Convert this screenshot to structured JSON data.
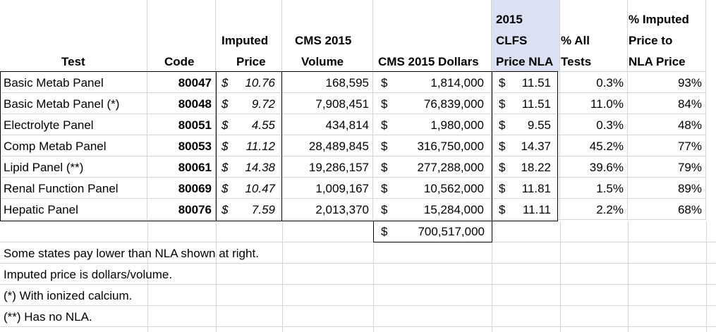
{
  "headers": {
    "test": "Test",
    "code": "Code",
    "imputed_price_l1": "Imputed",
    "imputed_price_l2": "Price",
    "cms_volume_l1": "CMS 2015",
    "cms_volume_l2": "Volume",
    "cms_dollars": "CMS 2015 Dollars",
    "clfs_l1": "2015",
    "clfs_l2": "CLFS",
    "clfs_l3": "Price NLA",
    "pct_all_l1": "% All",
    "pct_all_l2": "Tests",
    "pct_imputed_l1": "% Imputed",
    "pct_imputed_l2": "Price to",
    "pct_imputed_l3": "NLA Price"
  },
  "currency_symbol": "$",
  "rows": [
    {
      "test": "Basic Metab Panel",
      "code": "80047",
      "imputed_price": "10.76",
      "volume": "168,595",
      "dollars": "1,814,000",
      "nla_price": "11.51",
      "pct_all": "0.3%",
      "pct_imputed": "93%"
    },
    {
      "test": "Basic Metab Panel (*)",
      "code": "80048",
      "imputed_price": "9.72",
      "volume": "7,908,451",
      "dollars": "76,839,000",
      "nla_price": "11.51",
      "pct_all": "11.0%",
      "pct_imputed": "84%"
    },
    {
      "test": "Electrolyte Panel",
      "code": "80051",
      "imputed_price": "4.55",
      "volume": "434,814",
      "dollars": "1,980,000",
      "nla_price": "9.55",
      "pct_all": "0.3%",
      "pct_imputed": "48%"
    },
    {
      "test": "Comp Metab Panel",
      "code": "80053",
      "imputed_price": "11.12",
      "volume": "28,489,845",
      "dollars": "316,750,000",
      "nla_price": "14.37",
      "pct_all": "45.2%",
      "pct_imputed": "77%"
    },
    {
      "test": "Lipid Panel (**)",
      "code": "80061",
      "imputed_price": "14.38",
      "volume": "19,286,157",
      "dollars": "277,288,000",
      "nla_price": "18.22",
      "pct_all": "39.6%",
      "pct_imputed": "79%"
    },
    {
      "test": "Renal Function Panel",
      "code": "80069",
      "imputed_price": "10.47",
      "volume": "1,009,167",
      "dollars": "10,562,000",
      "nla_price": "11.81",
      "pct_all": "1.5%",
      "pct_imputed": "89%"
    },
    {
      "test": "Hepatic Panel",
      "code": "80076",
      "imputed_price": "7.59",
      "volume": "2,013,370",
      "dollars": "15,284,000",
      "nla_price": "11.11",
      "pct_all": "2.2%",
      "pct_imputed": "68%"
    }
  ],
  "total_dollars": "700,517,000",
  "notes": [
    "Some states pay lower than NLA shown at right.",
    "Imputed price is dollars/volume.",
    "(*) With ionized calcium.",
    "(**) Has no NLA."
  ]
}
